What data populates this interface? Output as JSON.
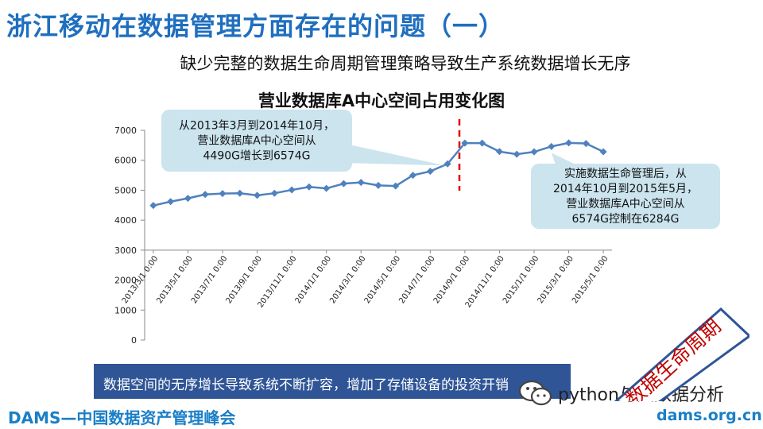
{
  "header": {
    "title": "浙江移动在数据管理方面存在的问题（一）",
    "subtitle": "缺少完整的数据生命周期管理策略导致生产系统数据增长无序"
  },
  "chart_data": {
    "type": "line",
    "title": "营业数据库A中心空间占用变化图",
    "xlabel": "",
    "ylabel": "",
    "ylim": [
      0,
      7000
    ],
    "yticks": [
      0,
      1000,
      2000,
      3000,
      4000,
      5000,
      6000,
      7000
    ],
    "x_tick_labels": [
      "2013/3/1 0:00",
      "2013/5/1 0:00",
      "2013/7/1 0:00",
      "2013/9/1 0:00",
      "2013/11/1 0:00",
      "2014/1/1 0:00",
      "2014/3/1 0:00",
      "2014/5/1 0:00",
      "2014/7/1 0:00",
      "2014/9/1 0:00",
      "2014/11/1 0:00",
      "2015/1/1 0:00",
      "2015/3/1 0:00",
      "2015/5/1 0:00"
    ],
    "values": [
      4490,
      4620,
      4730,
      4860,
      4890,
      4900,
      4830,
      4900,
      5010,
      5110,
      5060,
      5220,
      5260,
      5160,
      5140,
      5500,
      5630,
      5880,
      6574,
      6574,
      6290,
      6200,
      6280,
      6460,
      6580,
      6560,
      6284
    ],
    "series_color": "#4f81bd",
    "marker": "diamond",
    "divider_after_index": 18,
    "divider_color": "#e00000",
    "grid": false,
    "legend": "none",
    "annotations": [
      {
        "lines": [
          "从2013年3月到2014年10月，",
          "营业数据库A中心空间从",
          "4490G增长到6574G"
        ]
      },
      {
        "lines": [
          "实施数据生命管理后，从",
          "2014年10月到2015年5月，",
          "营业数据库A中心空间从",
          "6574G控制在6284G"
        ]
      }
    ]
  },
  "bar_note": "数据空间的无序增长导致系统不断扩容，增加了存储设备的投资开销",
  "footer": {
    "left": "DAMS—中国数据资产管理峰会",
    "right": "dams.org.cn",
    "wechat": "python与大数据分析"
  },
  "stamp": {
    "text": "数据生命周期",
    "color": "#c00000",
    "border_color": "#2f5597"
  },
  "colors": {
    "title": "#1f6fbf",
    "bar": "#2f5597",
    "callout_fill": "#cbe4ee"
  }
}
